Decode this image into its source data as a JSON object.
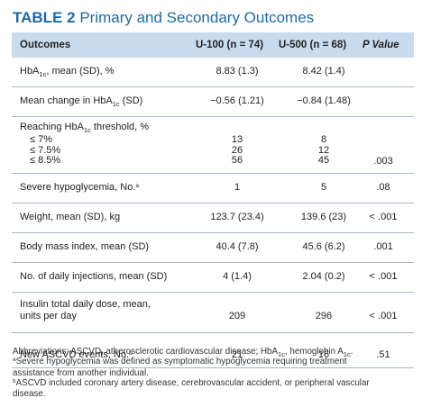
{
  "title": {
    "label": "TABLE 2",
    "text": "Primary and Secondary Outcomes"
  },
  "table": {
    "headers": {
      "outcomes": "Outcomes",
      "u100": "U-100 (n = 74)",
      "u500": "U-500 (n = 68)",
      "p": "P Value"
    },
    "rows": [
      {
        "label_pre": "HbA",
        "label_sub": "1c",
        "label_post": ", mean (SD), %",
        "u100": "8.83 (1.3)",
        "u500": "8.42 (1.4)",
        "p": ""
      },
      {
        "label_pre": "Mean change in HbA",
        "label_sub": "1c",
        "label_post": " (SD)",
        "u100": "−0.56 (1.21)",
        "u500": "−0.84 (1.48)",
        "p": ""
      },
      {
        "label_pre": "Reaching HbA",
        "label_sub": "1c",
        "label_post": " threshold, %",
        "sub_items": [
          "≤ 7%",
          "≤ 7.5%",
          "≤ 8.5%"
        ],
        "u100_values": [
          "13",
          "26",
          "56"
        ],
        "u500_values": [
          "8",
          "12",
          "45"
        ],
        "p": ".003"
      },
      {
        "label": "Severe hypoglycemia, No.",
        "label_mark": "a",
        "u100": "1",
        "u500": "5",
        "p": ".08"
      },
      {
        "label": "Weight, mean (SD), kg",
        "u100": "123.7 (23.4)",
        "u500": "139.6 (23)",
        "p": "< .001"
      },
      {
        "label": "Body mass index, mean (SD)",
        "u100": "40.4 (7.8)",
        "u500": "45.6 (6.2)",
        "p": ".001"
      },
      {
        "label": "No. of daily injections, mean (SD)",
        "u100": "4 (1.4)",
        "u500": "2.04 (0.2)",
        "p": "< .001"
      },
      {
        "label_line1": "Insulin total daily dose, mean,",
        "label_line2": "units per day",
        "u100": "209",
        "u500": "296",
        "p": "< .001"
      },
      {
        "label": "New ASCVD events, No.",
        "label_mark": "b",
        "u100": "21",
        "u500": "16",
        "p": ".51"
      }
    ]
  },
  "notes": {
    "abbrev_pre": "Abbreviations: ASCVD, atherosclerotic cardiovascular disease; HbA",
    "abbrev_sub1": "1c",
    "abbrev_mid": ", hemoglobin A",
    "abbrev_sub2": "1c",
    "abbrev_end": ".",
    "a_mark": "a",
    "a_line1": "Severe hypoglycemia was defined as symptomatic hypoglycemia requiring treatment",
    "a_line2": "assistance from another individual.",
    "b_mark": "b",
    "b_line1": "ASCVD included coronary artery disease, cerebrovascular accident, or peripheral vascular",
    "b_line2": "disease."
  }
}
